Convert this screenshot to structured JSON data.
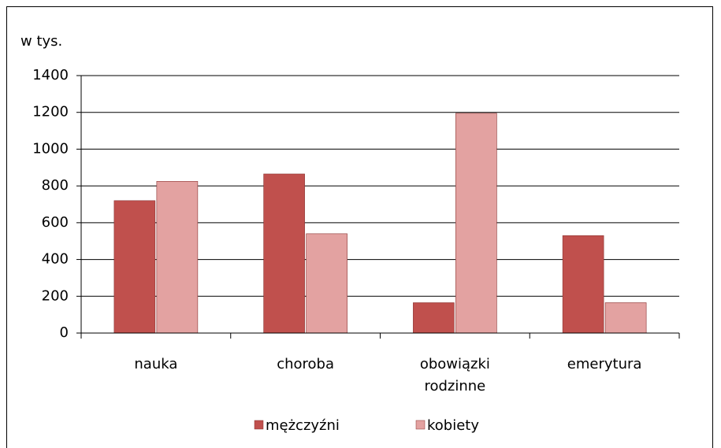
{
  "chart_data": {
    "type": "bar",
    "y_axis_label": "w tys.",
    "categories": [
      "nauka",
      "choroba",
      "obowiązki rodzinne",
      "emerytura"
    ],
    "series": [
      {
        "name": "mężczyźni",
        "color": "#c0504d",
        "values": [
          720,
          865,
          165,
          530
        ]
      },
      {
        "name": "kobiety",
        "color": "#e3a2a1",
        "values": [
          825,
          540,
          1195,
          165
        ]
      }
    ],
    "ylim": [
      0,
      1400
    ],
    "yticks": [
      0,
      200,
      400,
      600,
      800,
      1000,
      1200,
      1400
    ],
    "grid": true,
    "legend": "bottom"
  }
}
